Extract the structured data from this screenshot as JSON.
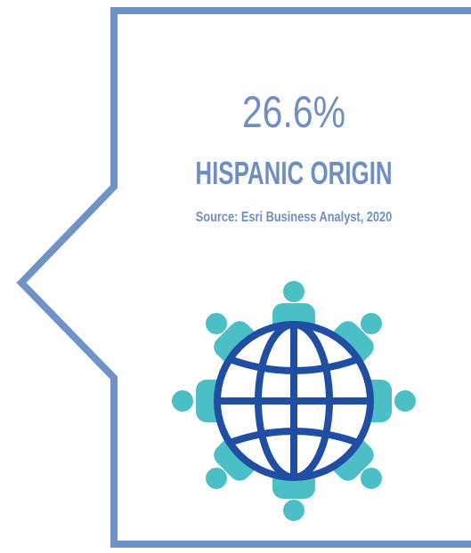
{
  "stat": {
    "value": "26.6%",
    "label": "HISPANIC ORIGIN",
    "source": "Source: Esri Business Analyst, 2020"
  }
}
